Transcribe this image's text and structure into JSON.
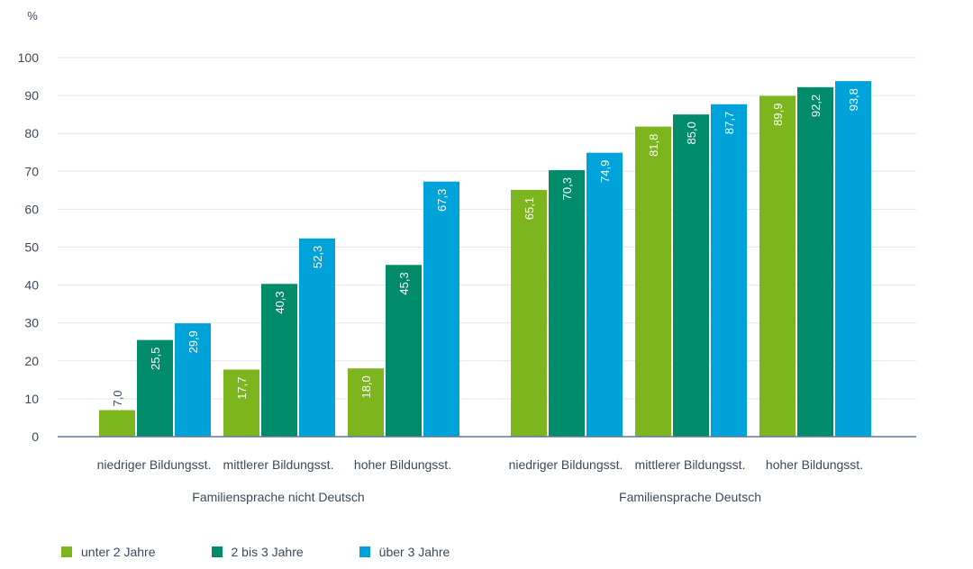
{
  "chart_data": {
    "type": "bar",
    "unit_label": "%",
    "ylim": [
      0,
      100
    ],
    "yticks": [
      0,
      10,
      20,
      30,
      40,
      50,
      60,
      70,
      80,
      90,
      100
    ],
    "grid": true,
    "groups": [
      {
        "name": "Familiensprache nicht Deutsch",
        "categories": [
          "niedriger Bildungsst.",
          "mittlerer Bildungsst.",
          "hoher Bildungsst."
        ],
        "series": [
          {
            "name": "unter 2 Jahre",
            "values": [
              7.0,
              17.7,
              18.0
            ]
          },
          {
            "name": "2 bis 3 Jahre",
            "values": [
              25.5,
              40.3,
              45.3
            ]
          },
          {
            "name": "über 3 Jahre",
            "values": [
              29.9,
              52.3,
              67.3
            ]
          }
        ]
      },
      {
        "name": "Familiensprache Deutsch",
        "categories": [
          "niedriger Bildungsst.",
          "mittlerer Bildungsst.",
          "hoher Bildungsst."
        ],
        "series": [
          {
            "name": "unter 2 Jahre",
            "values": [
              65.1,
              81.8,
              89.9
            ]
          },
          {
            "name": "2 bis 3 Jahre",
            "values": [
              70.3,
              85.0,
              92.2
            ]
          },
          {
            "name": "über 3 Jahre",
            "values": [
              74.9,
              87.7,
              93.8
            ]
          }
        ]
      }
    ],
    "legend": {
      "placement": "bottom-left",
      "items": [
        {
          "name": "unter 2 Jahre",
          "color": "#7db51f"
        },
        {
          "name": "2 bis 3 Jahre",
          "color": "#008b6a"
        },
        {
          "name": "über 3 Jahre",
          "color": "#00a3d9"
        }
      ]
    },
    "colors": {
      "axis": "#5b7a99",
      "grid": "#e6e6e6",
      "text": "#3a4a5c",
      "bar_label": "#ffffff",
      "outside_label": "#3a4a5c"
    }
  }
}
